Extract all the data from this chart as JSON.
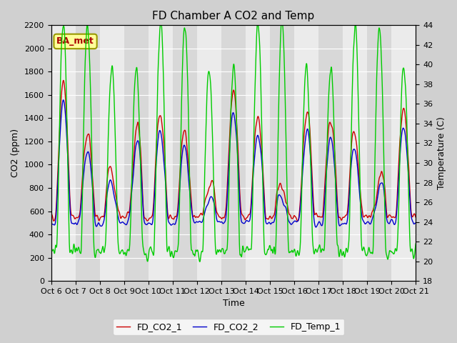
{
  "title": "FD Chamber A CO2 and Temp",
  "xlabel": "Time",
  "ylabel_left": "CO2 (ppm)",
  "ylabel_right": "Temperature (C)",
  "annotation": "BA_met",
  "ylim_left": [
    0,
    2200
  ],
  "ylim_right": [
    18,
    44
  ],
  "yticks_left": [
    0,
    200,
    400,
    600,
    800,
    1000,
    1200,
    1400,
    1600,
    1800,
    2000,
    2200
  ],
  "yticks_right": [
    18,
    20,
    22,
    24,
    26,
    28,
    30,
    32,
    34,
    36,
    38,
    40,
    42,
    44
  ],
  "xtick_labels": [
    "Oct 6",
    "Oct 7",
    "Oct 8",
    "Oct 9",
    "Oct 10",
    "Oct 11",
    "Oct 12",
    "Oct 13",
    "Oct 14",
    "Oct 15",
    "Oct 16",
    "Oct 17",
    "Oct 18",
    "Oct 19",
    "Oct 20",
    "Oct 21"
  ],
  "color_co2_1": "#cc0000",
  "color_co2_2": "#0000cc",
  "color_temp": "#00cc00",
  "legend_labels": [
    "FD_CO2_1",
    "FD_CO2_2",
    "FD_Temp_1"
  ],
  "band_color_light": "#ebebeb",
  "band_color_dark": "#d8d8d8",
  "fig_bg": "#d0d0d0",
  "plot_bg": "#e0e0e0",
  "annotation_bg": "#ffff99",
  "annotation_border": "#999900",
  "annotation_text_color": "#aa0000",
  "grid_color": "#ffffff",
  "linewidth": 1.0,
  "title_fontsize": 11,
  "label_fontsize": 9,
  "tick_fontsize": 8
}
